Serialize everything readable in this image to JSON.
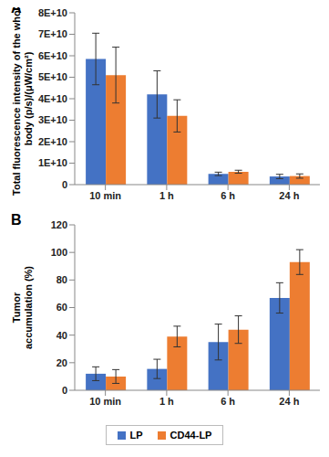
{
  "chart_data": [
    {
      "type": "bar",
      "panel": "A",
      "y_label": [
        "Total fluorescence intensity of the whole",
        "body (p/s)/(μW/cm²)"
      ],
      "categories": [
        "10 min",
        "1 h",
        "6 h",
        "24 h"
      ],
      "series": [
        {
          "name": "LP",
          "color": "#4472c4",
          "values": [
            58500000000,
            42000000000,
            5000000000,
            3800000000
          ],
          "errors": [
            12000000000,
            11000000000,
            800000000,
            1000000000
          ]
        },
        {
          "name": "CD44-LP",
          "color": "#ed7d31",
          "values": [
            51000000000,
            32000000000,
            6000000000,
            4000000000
          ],
          "errors": [
            13000000000,
            7500000000,
            700000000,
            1000000000
          ]
        }
      ],
      "ylim": [
        0,
        80000000000
      ],
      "yticks": [
        0,
        {
          "value": 10000000000,
          "label": "1E+10"
        },
        {
          "value": 20000000000,
          "label": "2E+10"
        },
        {
          "value": 30000000000,
          "label": "3E+10"
        },
        {
          "value": 40000000000,
          "label": "4E+10"
        },
        {
          "value": 50000000000,
          "label": "5E+10"
        },
        {
          "value": 60000000000,
          "label": "6E+10"
        },
        {
          "value": 70000000000,
          "label": "7E+10"
        },
        {
          "value": 80000000000,
          "label": "8E+10"
        }
      ],
      "grid": false
    },
    {
      "type": "bar",
      "panel": "B",
      "y_label": [
        "Tumor",
        "accumulation (%)"
      ],
      "categories": [
        "10 min",
        "1 h",
        "6 h",
        "24 h"
      ],
      "series": [
        {
          "name": "LP",
          "color": "#4472c4",
          "values": [
            12,
            15.5,
            35,
            67
          ],
          "errors": [
            5,
            7,
            13,
            11
          ]
        },
        {
          "name": "CD44-LP",
          "color": "#ed7d31",
          "values": [
            10,
            39,
            44,
            93
          ],
          "errors": [
            5,
            7.5,
            10,
            9
          ]
        }
      ],
      "ylim": [
        0,
        120
      ],
      "yticks": [
        0,
        20,
        40,
        60,
        80,
        100,
        120
      ],
      "grid": false,
      "legend": "bottom"
    }
  ]
}
